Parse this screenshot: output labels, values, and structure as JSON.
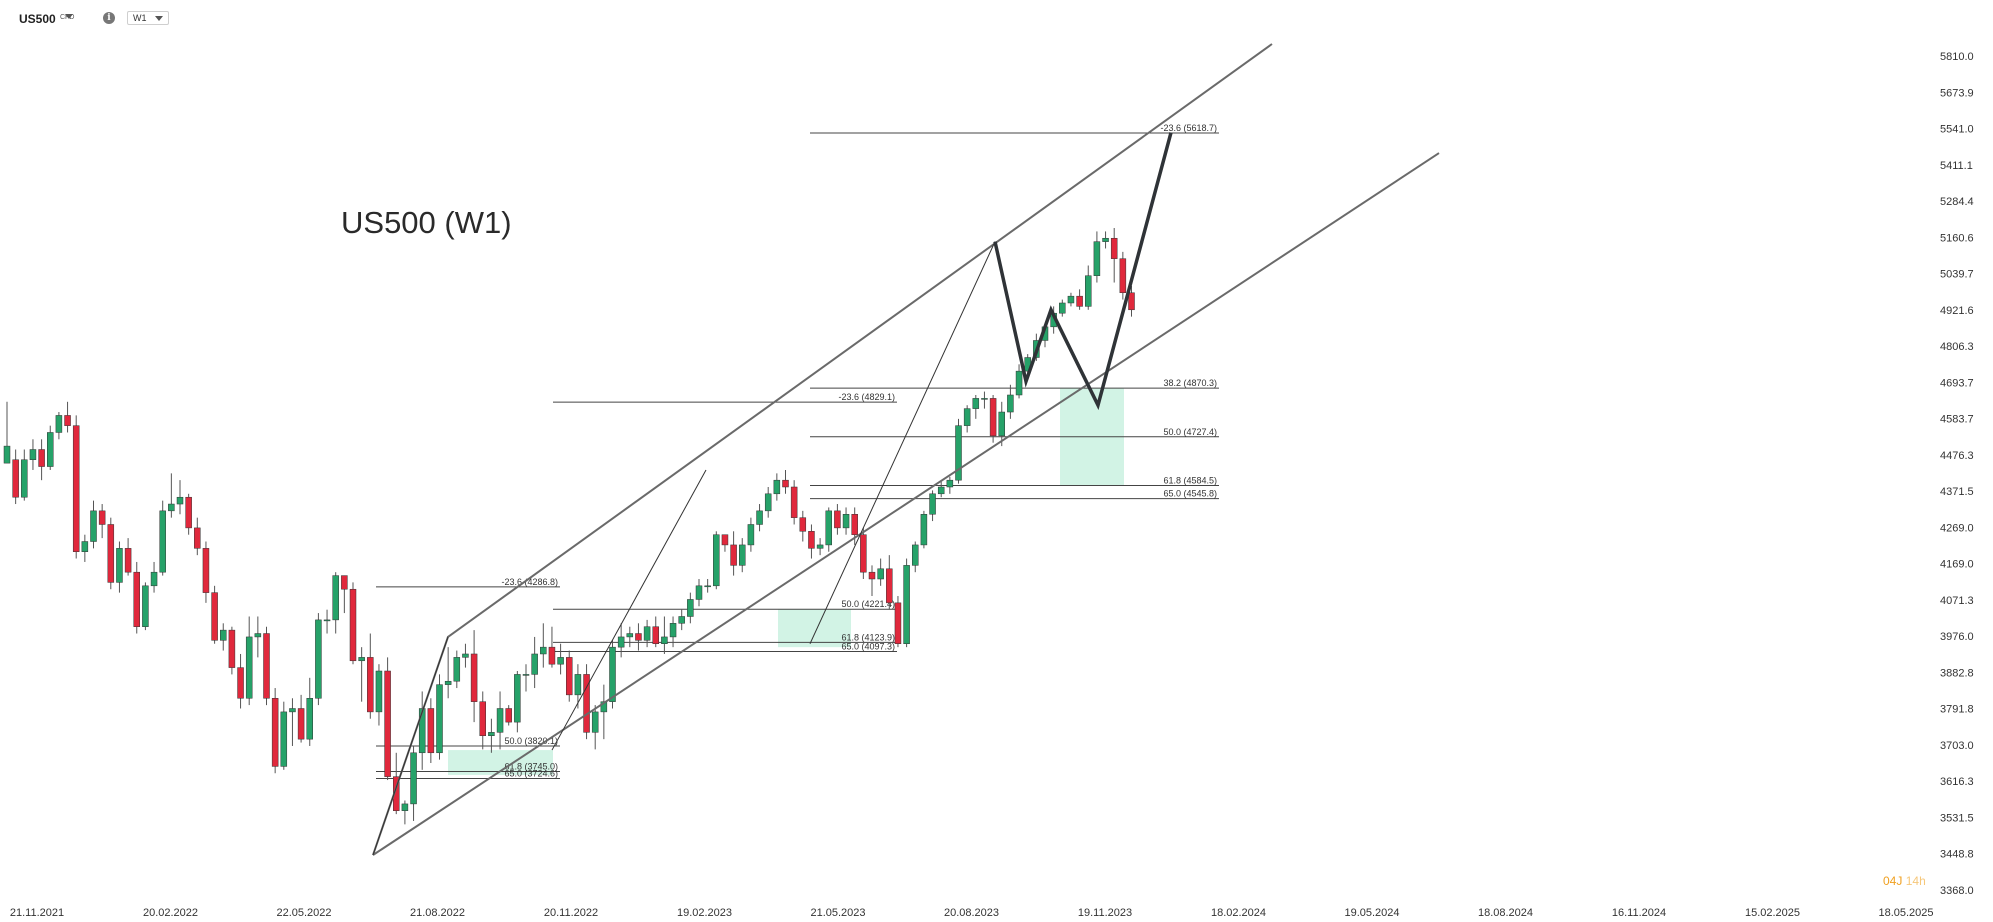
{
  "header": {
    "symbol": "US500",
    "symbol_type": "CFD",
    "info_glyph": "i",
    "timeframe": "W1",
    "info_icon": "info-icon",
    "dropdown_icon": "chevron-down-icon"
  },
  "timer": {
    "days": "04J",
    "hours": "14",
    "unit": "h"
  },
  "colors": {
    "bull": "#26a269",
    "bear": "#e0283c",
    "zone": "#7fdcb4",
    "line": "#555555",
    "projection": "#2f3337",
    "timer": "#f0a020"
  },
  "chart_data": {
    "type": "candlestick",
    "title": "US500 (W1)",
    "ylim": [
      3368.0,
      5880.0
    ],
    "grid": false,
    "y_ticks": [
      "5810.0",
      "5673.9",
      "5541.0",
      "5411.1",
      "5284.4",
      "5160.6",
      "5039.7",
      "4921.6",
      "4806.3",
      "4693.7",
      "4583.7",
      "4476.3",
      "4371.5",
      "4269.0",
      "4169.0",
      "4071.3",
      "3976.0",
      "3882.8",
      "3791.8",
      "3703.0",
      "3616.3",
      "3531.5",
      "3448.8",
      "3368.0"
    ],
    "x_ticks": [
      "21.11.2021",
      "20.02.2022",
      "22.05.2022",
      "21.08.2022",
      "20.11.2022",
      "19.02.2023",
      "21.05.2023",
      "20.08.2023",
      "19.11.2023",
      "18.02.2024",
      "19.05.2024",
      "18.08.2024",
      "16.11.2024",
      "15.02.2025",
      "18.05.2025"
    ],
    "candles": [
      [
        4650,
        4700,
        4660,
        4830,
        4610
      ],
      [
        4660,
        4550,
        4530,
        4690,
        4520
      ],
      [
        4550,
        4660,
        4540,
        4690,
        4530
      ],
      [
        4660,
        4690,
        4630,
        4720,
        4620
      ],
      [
        4690,
        4640,
        4600,
        4720,
        4580
      ],
      [
        4640,
        4740,
        4630,
        4760,
        4620
      ],
      [
        4740,
        4790,
        4720,
        4800,
        4710
      ],
      [
        4790,
        4760,
        4740,
        4830,
        4730
      ],
      [
        4760,
        4390,
        4370,
        4790,
        4330
      ],
      [
        4390,
        4420,
        4360,
        4440,
        4330
      ],
      [
        4420,
        4510,
        4400,
        4540,
        4390
      ],
      [
        4510,
        4470,
        4430,
        4530,
        4400
      ],
      [
        4470,
        4300,
        4280,
        4490,
        4280
      ],
      [
        4300,
        4400,
        4270,
        4420,
        4260
      ],
      [
        4400,
        4330,
        4320,
        4430,
        4320
      ],
      [
        4330,
        4170,
        4150,
        4360,
        4140
      ],
      [
        4170,
        4290,
        4160,
        4300,
        4150
      ],
      [
        4290,
        4330,
        4270,
        4360,
        4260
      ],
      [
        4330,
        4510,
        4320,
        4540,
        4300
      ],
      [
        4510,
        4530,
        4490,
        4620,
        4450
      ],
      [
        4530,
        4550,
        4500,
        4600,
        4440
      ],
      [
        4550,
        4460,
        4440,
        4560,
        4430
      ],
      [
        4460,
        4400,
        4380,
        4490,
        4370
      ],
      [
        4400,
        4270,
        4240,
        4420,
        4230
      ],
      [
        4270,
        4130,
        4120,
        4290,
        4110
      ],
      [
        4130,
        4160,
        4100,
        4180,
        4100
      ],
      [
        4160,
        4050,
        4030,
        4170,
        3980
      ],
      [
        4050,
        3960,
        3930,
        4090,
        3870
      ],
      [
        3960,
        4140,
        3940,
        4200,
        3890
      ],
      [
        4140,
        4150,
        4080,
        4200,
        4070
      ],
      [
        4150,
        3960,
        3940,
        4170,
        3900
      ],
      [
        3960,
        3760,
        3740,
        3990,
        3640
      ],
      [
        3760,
        3920,
        3750,
        3950,
        3720
      ],
      [
        3920,
        3930,
        3820,
        3960,
        3740
      ],
      [
        3930,
        3840,
        3830,
        3970,
        3800
      ],
      [
        3840,
        3960,
        3820,
        4020,
        3750
      ],
      [
        3960,
        4190,
        3940,
        4210,
        3910
      ],
      [
        4190,
        4190,
        4150,
        4220,
        4120
      ],
      [
        4190,
        4320,
        4150,
        4330,
        4160
      ],
      [
        4320,
        4280,
        4210,
        4320,
        4260
      ],
      [
        4280,
        4070,
        4060,
        4300,
        4030
      ],
      [
        4070,
        4080,
        3950,
        4110,
        4020
      ],
      [
        4080,
        3920,
        3900,
        4150,
        3880
      ],
      [
        3920,
        4040,
        3880,
        4060,
        3810
      ],
      [
        4040,
        3730,
        3720,
        4080,
        3660
      ],
      [
        3730,
        3630,
        3620,
        3800,
        3580
      ],
      [
        3630,
        3650,
        3590,
        3660,
        3560
      ],
      [
        3650,
        3800,
        3600,
        3820,
        3620
      ],
      [
        3800,
        3930,
        3750,
        3980,
        3780
      ],
      [
        3930,
        3800,
        3770,
        3960,
        3760
      ],
      [
        3800,
        4000,
        3780,
        4030,
        3790
      ],
      [
        4000,
        4010,
        3960,
        4110,
        3980
      ],
      [
        4010,
        4080,
        3990,
        4100,
        3990
      ],
      [
        4080,
        4090,
        4050,
        4120,
        4060
      ],
      [
        4090,
        3950,
        3890,
        4160,
        3860
      ],
      [
        3950,
        3850,
        3810,
        3980,
        3830
      ],
      [
        3850,
        3860,
        3800,
        3900,
        3810
      ],
      [
        3860,
        3930,
        3810,
        3980,
        3820
      ],
      [
        3930,
        3890,
        3880,
        3940,
        3820
      ],
      [
        3890,
        4030,
        3860,
        4040,
        3880
      ],
      [
        4030,
        4030,
        3980,
        4060,
        3990
      ],
      [
        4030,
        4090,
        3990,
        4140,
        4010
      ],
      [
        4090,
        4110,
        4050,
        4180,
        4060
      ],
      [
        4110,
        4060,
        4050,
        4170,
        4040
      ],
      [
        4060,
        4080,
        4030,
        4120,
        4050
      ],
      [
        4080,
        3970,
        3950,
        4100,
        3940
      ],
      [
        3970,
        4030,
        3930,
        4060,
        3940
      ],
      [
        4030,
        3860,
        3840,
        4060,
        3840
      ],
      [
        3860,
        3920,
        3810,
        3940,
        3840
      ],
      [
        3920,
        3950,
        3840,
        4000,
        3870
      ],
      [
        3950,
        4110,
        3930,
        4130,
        3940
      ],
      [
        4110,
        4140,
        4080,
        4180,
        4090
      ],
      [
        4140,
        4150,
        4110,
        4170,
        4120
      ],
      [
        4150,
        4130,
        4100,
        4180,
        4110
      ],
      [
        4130,
        4170,
        4110,
        4190,
        4130
      ],
      [
        4170,
        4120,
        4110,
        4200,
        4110
      ],
      [
        4120,
        4140,
        4090,
        4200,
        4110
      ],
      [
        4140,
        4180,
        4110,
        4200,
        4120
      ],
      [
        4180,
        4200,
        4160,
        4220,
        4170
      ],
      [
        4200,
        4250,
        4180,
        4270,
        4200
      ],
      [
        4250,
        4290,
        4230,
        4310,
        4240
      ],
      [
        4290,
        4290,
        4270,
        4310,
        4270
      ],
      [
        4290,
        4440,
        4280,
        4450,
        4290
      ],
      [
        4440,
        4410,
        4390,
        4440,
        4380
      ],
      [
        4410,
        4350,
        4320,
        4450,
        4330
      ],
      [
        4350,
        4410,
        4330,
        4430,
        4340
      ],
      [
        4410,
        4470,
        4390,
        4490,
        4400
      ],
      [
        4470,
        4510,
        4450,
        4530,
        4460
      ],
      [
        4510,
        4560,
        4490,
        4580,
        4500
      ],
      [
        4560,
        4600,
        4540,
        4620,
        4560
      ],
      [
        4600,
        4580,
        4560,
        4630,
        4560
      ],
      [
        4580,
        4490,
        4470,
        4600,
        4470
      ],
      [
        4490,
        4450,
        4420,
        4510,
        4410
      ],
      [
        4450,
        4400,
        4370,
        4470,
        4380
      ],
      [
        4400,
        4410,
        4380,
        4430,
        4370
      ],
      [
        4410,
        4510,
        4390,
        4520,
        4410
      ],
      [
        4510,
        4460,
        4440,
        4530,
        4450
      ],
      [
        4460,
        4500,
        4440,
        4520,
        4450
      ],
      [
        4500,
        4440,
        4410,
        4520,
        4400
      ],
      [
        4440,
        4330,
        4310,
        4460,
        4300
      ],
      [
        4330,
        4310,
        4260,
        4350,
        4290
      ],
      [
        4310,
        4340,
        4290,
        4370,
        4300
      ],
      [
        4340,
        4240,
        4220,
        4380,
        4230
      ],
      [
        4240,
        4120,
        4110,
        4260,
        4110
      ],
      [
        4120,
        4350,
        4110,
        4370,
        4120
      ],
      [
        4350,
        4410,
        4330,
        4420,
        4340
      ],
      [
        4410,
        4500,
        4400,
        4510,
        4400
      ],
      [
        4500,
        4560,
        4480,
        4570,
        4490
      ],
      [
        4560,
        4580,
        4550,
        4600,
        4550
      ],
      [
        4580,
        4600,
        4560,
        4610,
        4560
      ],
      [
        4600,
        4760,
        4590,
        4780,
        4600
      ],
      [
        4760,
        4810,
        4740,
        4820,
        4750
      ],
      [
        4810,
        4840,
        4780,
        4850,
        4790
      ],
      [
        4840,
        4840,
        4810,
        4860,
        4820
      ],
      [
        4840,
        4730,
        4710,
        4850,
        4700
      ],
      [
        4730,
        4800,
        4700,
        4830,
        4720
      ],
      [
        4800,
        4850,
        4780,
        4880,
        4790
      ],
      [
        4850,
        4920,
        4840,
        4940,
        4850
      ],
      [
        4920,
        4960,
        4900,
        4970,
        4910
      ],
      [
        4960,
        5010,
        4950,
        5030,
        4960
      ],
      [
        5010,
        5050,
        4990,
        5060,
        5000
      ],
      [
        5050,
        5090,
        5030,
        5110,
        5040
      ],
      [
        5090,
        5120,
        5080,
        5130,
        5090
      ],
      [
        5120,
        5140,
        5110,
        5150,
        5110
      ],
      [
        5140,
        5110,
        5100,
        5160,
        5100
      ],
      [
        5110,
        5200,
        5100,
        5230,
        5110
      ],
      [
        5200,
        5300,
        5180,
        5330,
        5190
      ],
      [
        5300,
        5310,
        5280,
        5330,
        5290
      ],
      [
        5310,
        5250,
        5180,
        5340,
        5240
      ],
      [
        5250,
        5150,
        5130,
        5270,
        5140
      ],
      [
        5150,
        5100,
        5080,
        5170,
        5090
      ]
    ],
    "x_start_index": 1,
    "channel_lines": [
      {
        "name": "upper",
        "points": [
          [
            373,
            3500
          ],
          [
            448,
            4140
          ],
          [
            1272,
            5880
          ]
        ]
      },
      {
        "name": "lower",
        "points": [
          [
            373,
            3500
          ],
          [
            1439,
            5560
          ]
        ]
      }
    ],
    "wave_lines": [
      [
        [
          373,
          3500
        ],
        [
          448,
          4140
        ]
      ],
      [
        [
          552,
          3808
        ],
        [
          706,
          4630
        ]
      ],
      [
        [
          810,
          4120
        ],
        [
          995,
          5300
        ]
      ]
    ],
    "projection_path": [
      [
        995,
        5300
      ],
      [
        1026,
        4890
      ],
      [
        1051,
        5100
      ],
      [
        1098,
        4820
      ],
      [
        1171,
        5620
      ]
    ],
    "fib_groups": [
      {
        "x1": 376,
        "x2": 560,
        "levels": [
          {
            "label": "-23.6 (4286.8)",
            "value": 4286.8
          },
          {
            "label": "50.0 (3820.1)",
            "value": 3820.1
          },
          {
            "label": "61.8 (3745.0)",
            "value": 3745.0
          },
          {
            "label": "65.0 (3724.6)",
            "value": 3724.6
          }
        ]
      },
      {
        "x1": 553,
        "x2": 897,
        "levels": [
          {
            "label": "-23.6 (4829.1)",
            "value": 4829.1
          },
          {
            "label": "50.0 (4221.4)",
            "value": 4221.4
          },
          {
            "label": "61.8 (4123.9)",
            "value": 4123.9
          },
          {
            "label": "65.0 (4097.3)",
            "value": 4097.3
          }
        ]
      },
      {
        "x1": 810,
        "x2": 1219,
        "levels": [
          {
            "label": "-23.6 (5618.7)",
            "value": 5618.7
          },
          {
            "label": "38.2 (4870.3)",
            "value": 4870.3
          },
          {
            "label": "50.0 (4727.4)",
            "value": 4727.4
          },
          {
            "label": "61.8 (4584.5)",
            "value": 4584.5
          },
          {
            "label": "65.0 (4545.8)",
            "value": 4545.8
          }
        ]
      }
    ],
    "zones": [
      {
        "x1": 448,
        "x2": 553,
        "top": 3808,
        "bottom": 3735
      },
      {
        "x1": 778,
        "x2": 851,
        "top": 4221.4,
        "bottom": 4110
      },
      {
        "x1": 1060,
        "x2": 1124,
        "top": 4870.3,
        "bottom": 4584.5
      }
    ]
  }
}
